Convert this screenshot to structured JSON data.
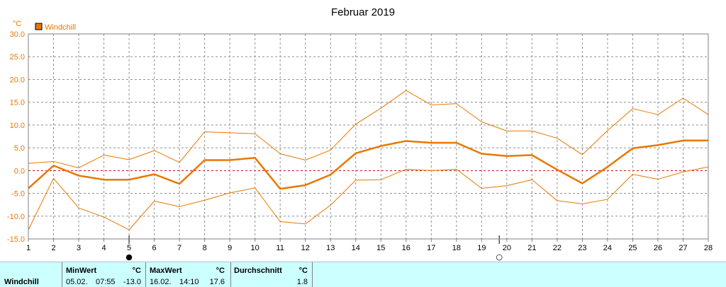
{
  "chart_data": {
    "type": "line",
    "title": "Februar 2019",
    "unit_label": "°C",
    "legend": {
      "label": "Windchill",
      "color": "#e87800",
      "placement": "top-left"
    },
    "x": [
      1,
      2,
      3,
      4,
      5,
      6,
      7,
      8,
      9,
      10,
      11,
      12,
      13,
      14,
      15,
      16,
      17,
      18,
      19,
      20,
      21,
      22,
      23,
      24,
      25,
      26,
      27,
      28
    ],
    "xlim": [
      1,
      28
    ],
    "ylim": [
      -15,
      30
    ],
    "yticks": [
      "30.0",
      "25.0",
      "20.0",
      "15.0",
      "10.0",
      "5.0",
      "0.0",
      "-5.0",
      "-10.0",
      "-15.0"
    ],
    "grid": true,
    "zero_line_color": "#cc0000",
    "series": [
      {
        "role": "max",
        "values": [
          1.6,
          2.0,
          0.6,
          3.4,
          2.4,
          4.4,
          1.8,
          8.5,
          8.3,
          8.1,
          3.7,
          2.3,
          4.5,
          10.2,
          13.7,
          17.6,
          14.4,
          14.7,
          10.7,
          8.7,
          8.7,
          7.1,
          3.5,
          8.8,
          13.6,
          12.3,
          15.9,
          12.3
        ]
      },
      {
        "role": "avg",
        "values": [
          -3.9,
          1.1,
          -1.1,
          -2.0,
          -2.0,
          -0.8,
          -2.9,
          2.3,
          2.3,
          2.8,
          -4.0,
          -3.2,
          -0.9,
          3.8,
          5.4,
          6.5,
          6.1,
          6.1,
          3.7,
          3.2,
          3.4,
          0.2,
          -2.8,
          0.8,
          4.9,
          5.6,
          6.6,
          6.6
        ]
      },
      {
        "role": "min",
        "values": [
          -13.0,
          -1.7,
          -8.2,
          -10.2,
          -13.0,
          -6.7,
          -7.9,
          -6.5,
          -4.9,
          -3.8,
          -11.2,
          -11.7,
          -7.6,
          -2.1,
          -2.0,
          0.3,
          0.0,
          0.3,
          -3.9,
          -3.3,
          -2.0,
          -6.6,
          -7.3,
          -6.3,
          -0.8,
          -1.9,
          -0.3,
          0.8
        ]
      }
    ],
    "moon_markers": [
      {
        "day": 5,
        "phase": "new",
        "symbol": "●"
      },
      {
        "day": 19.7,
        "phase": "full",
        "symbol": "○"
      }
    ]
  },
  "stats": {
    "row_label": "Windchill",
    "min": {
      "header": "MinWert",
      "unit": "°C",
      "date": "05.02.",
      "time": "07:55",
      "value": "-13.0"
    },
    "max": {
      "header": "MaxWert",
      "unit": "°C",
      "date": "16.02.",
      "time": "14:10",
      "value": "17.6"
    },
    "avg": {
      "header": "Durchschnitt",
      "unit": "°C",
      "value": "1.8"
    }
  },
  "colors": {
    "line": "#e87800",
    "panel": "#ccffff",
    "grid": "#808080"
  }
}
